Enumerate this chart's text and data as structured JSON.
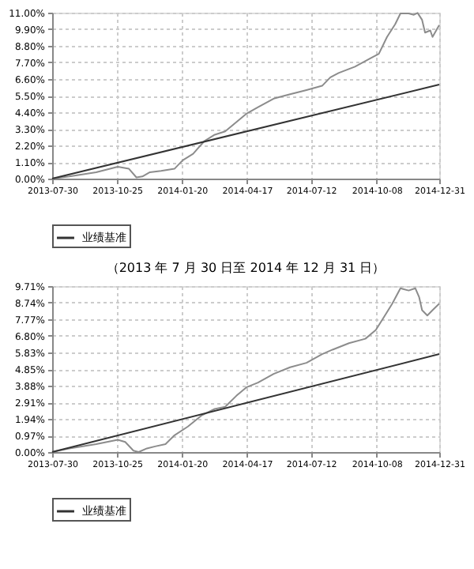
{
  "chart_data": [
    {
      "type": "line",
      "grid": true,
      "legend": "bottom",
      "xlim": [
        "2013-07-30",
        "2014-12-31"
      ],
      "xticks": [
        "2013-07-30",
        "2013-10-25",
        "2014-01-20",
        "2014-04-17",
        "2014-07-12",
        "2014-10-08",
        "2014-12-31"
      ],
      "ylim": [
        0,
        11
      ],
      "yticks": [
        {
          "value": 0,
          "label": "0.00%"
        },
        {
          "value": 1.1,
          "label": "1.10%"
        },
        {
          "value": 2.2,
          "label": "2.20%"
        },
        {
          "value": 3.3,
          "label": "3.30%"
        },
        {
          "value": 4.4,
          "label": "4.40%"
        },
        {
          "value": 5.5,
          "label": "5.50%"
        },
        {
          "value": 6.6,
          "label": "6.60%"
        },
        {
          "value": 7.7,
          "label": "7.70%"
        },
        {
          "value": 8.8,
          "label": "8.80%"
        },
        {
          "value": 9.9,
          "label": "9.90%"
        },
        {
          "value": 11,
          "label": "11.00%"
        }
      ],
      "series": [
        {
          "color": "#8c8c8c",
          "x": [
            "2013-07-30",
            "2013-08-22",
            "2013-09-27",
            "2013-10-26",
            "2013-11-10",
            "2013-11-20",
            "2013-11-28",
            "2013-12-08",
            "2013-12-23",
            "2014-01-10",
            "2014-01-21",
            "2014-02-04",
            "2014-02-19",
            "2014-03-05",
            "2014-03-19",
            "2014-04-03",
            "2014-04-17",
            "2014-05-02",
            "2014-05-23",
            "2014-06-14",
            "2014-07-06",
            "2014-07-27",
            "2014-08-07",
            "2014-08-18",
            "2014-09-09",
            "2014-09-30",
            "2014-10-11",
            "2014-10-22",
            "2014-11-02",
            "2014-11-09",
            "2014-11-20",
            "2014-11-27",
            "2014-12-02",
            "2014-12-08",
            "2014-12-12",
            "2014-12-19",
            "2014-12-22",
            "2014-12-31"
          ],
          "values": [
            0,
            0.14,
            0.42,
            0.79,
            0.65,
            0.08,
            0.14,
            0.42,
            0.51,
            0.65,
            1.21,
            1.64,
            2.48,
            2.91,
            3.13,
            3.75,
            4.32,
            4.74,
            5.3,
            5.59,
            5.87,
            6.15,
            6.71,
            7.0,
            7.42,
            7.98,
            8.27,
            9.39,
            10.24,
            10.95,
            10.95,
            10.86,
            10.98,
            10.52,
            9.68,
            9.82,
            9.39,
            10.18
          ]
        },
        {
          "name": "业绩基准",
          "color": "#333333",
          "x": [
            "2013-07-30",
            "2014-12-31"
          ],
          "values": [
            0,
            6.23
          ]
        }
      ]
    },
    {
      "type": "line",
      "title": "（2013 年 7 月 30 日至 2014 年 12 月 31 日）",
      "grid": true,
      "legend": "bottom",
      "xlim": [
        "2013-07-30",
        "2014-12-31"
      ],
      "xticks": [
        "2013-07-30",
        "2013-10-25",
        "2014-01-20",
        "2014-04-17",
        "2014-07-12",
        "2014-10-08",
        "2014-12-31"
      ],
      "ylim": [
        0,
        9.71
      ],
      "yticks": [
        {
          "value": 0,
          "label": "0.00%"
        },
        {
          "value": 0.97,
          "label": "0.97%"
        },
        {
          "value": 1.94,
          "label": "1.94%"
        },
        {
          "value": 2.91,
          "label": "2.91%"
        },
        {
          "value": 3.88,
          "label": "3.88%"
        },
        {
          "value": 4.85,
          "label": "4.85%"
        },
        {
          "value": 5.83,
          "label": "5.83%"
        },
        {
          "value": 6.8,
          "label": "6.80%"
        },
        {
          "value": 7.77,
          "label": "7.77%"
        },
        {
          "value": 8.74,
          "label": "8.74%"
        },
        {
          "value": 9.71,
          "label": "9.71%"
        }
      ],
      "series": [
        {
          "color": "#8c8c8c",
          "x": [
            "2013-07-30",
            "2013-08-07",
            "2013-08-22",
            "2013-09-27",
            "2013-10-26",
            "2013-11-05",
            "2013-11-16",
            "2013-11-23",
            "2013-12-04",
            "2013-12-15",
            "2013-12-29",
            "2014-01-10",
            "2014-01-28",
            "2014-02-15",
            "2014-03-05",
            "2014-03-19",
            "2014-04-03",
            "2014-04-17",
            "2014-05-02",
            "2014-05-23",
            "2014-06-14",
            "2014-07-06",
            "2014-07-27",
            "2014-08-10",
            "2014-09-01",
            "2014-09-23",
            "2014-10-07",
            "2014-10-18",
            "2014-10-29",
            "2014-11-09",
            "2014-11-20",
            "2014-11-29",
            "2014-12-04",
            "2014-12-08",
            "2014-12-15",
            "2014-12-22",
            "2014-12-31"
          ],
          "values": [
            0,
            0.08,
            0.21,
            0.46,
            0.72,
            0.59,
            0.08,
            0,
            0.21,
            0.33,
            0.46,
            0.98,
            1.49,
            2.13,
            2.52,
            2.65,
            3.29,
            3.8,
            4.06,
            4.57,
            4.96,
            5.22,
            5.73,
            5.99,
            6.37,
            6.63,
            7.14,
            7.91,
            8.68,
            9.58,
            9.45,
            9.58,
            9.07,
            8.3,
            7.99,
            8.3,
            8.68
          ]
        },
        {
          "name": "业绩基准",
          "color": "#333333",
          "x": [
            "2013-07-30",
            "2014-12-31"
          ],
          "values": [
            0,
            5.73
          ]
        }
      ]
    }
  ]
}
